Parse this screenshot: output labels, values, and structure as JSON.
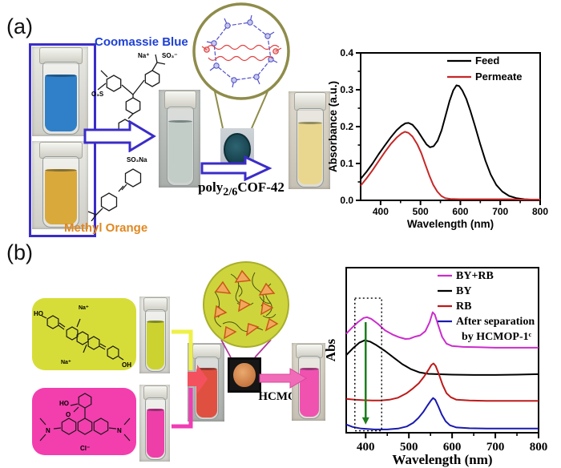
{
  "panels": {
    "a": {
      "label": "(a)",
      "dye1": "Coomassie Blue",
      "dye2": "Methyl Orange",
      "membrane_label": {
        "pre": "poly",
        "sub": "2/6",
        "post": "COF-42"
      },
      "structures": {
        "coomassie": {
          "na": "Na⁺",
          "so3": "SO₃⁻",
          "o3s": "O₃S"
        },
        "methyl_orange": {
          "so3na": "SO₃Na"
        }
      },
      "colors": {
        "box_border": "#3b2cc8",
        "arrow": "#3b2cc8",
        "dye1_text": "#1d3fd6",
        "dye2_text": "#e08820",
        "ring": "#8e8c4a",
        "net_blue": "#5050c8",
        "net_red": "#e04040",
        "vial_blue": "#2f80c8",
        "vial_amber": "#d9a93c",
        "vial_mix": "#c3cdc8",
        "vial_permeate": "#ead78f",
        "membrane": "#1d4a55"
      }
    },
    "b": {
      "label": "(b)",
      "process_label": "HCMOPs",
      "structures": {
        "by": {
          "ho": "HO",
          "na_top": "Na⁺",
          "na_bottom": "Na⁺",
          "oh": "OH"
        },
        "rb": {
          "ho": "HO",
          "o": "O",
          "cl": "Cl⁻",
          "n_left": "N",
          "n_right": "N"
        }
      },
      "colors": {
        "box_yellow": "#d7dd38",
        "box_magenta": "#f33eae",
        "connector_yellow": "#eef048",
        "connector_magenta": "#f03cb4",
        "merge_arrow": "#f4515f",
        "process_arrow": "#f06cb8",
        "circle_fill": "#ced53c",
        "triangle_fill": "#f2a85c",
        "triangle_stroke": "#c85818",
        "vial_by": "#ccd22f",
        "vial_rb": "#ee3fa8",
        "vial_mix": "#e05040",
        "vial_after": "#f052b0"
      }
    }
  },
  "chart_data": [
    {
      "type": "line",
      "title": "",
      "xlabel": "Wavelength (nm)",
      "ylabel": "Absorbance (a.u.)",
      "xlim": [
        350,
        800
      ],
      "ylim": [
        0,
        0.4
      ],
      "xticks": [
        400,
        500,
        600,
        700,
        800
      ],
      "xticklabels": [
        "400",
        "500",
        "600",
        "700",
        "800"
      ],
      "xminor": [
        450,
        550,
        650,
        750
      ],
      "yticks": [
        0.0,
        0.1,
        0.2,
        0.3,
        0.4
      ],
      "yticklabels": [
        "0.0",
        "0.1",
        "0.2",
        "0.3",
        "0.4"
      ],
      "yminor": [
        0.05,
        0.15,
        0.25,
        0.35
      ],
      "grid": false,
      "legend_position": "top-right",
      "series": [
        {
          "name": "Feed",
          "color": "#000000",
          "points": [
            [
              350,
              0.058
            ],
            [
              365,
              0.078
            ],
            [
              380,
              0.1
            ],
            [
              395,
              0.125
            ],
            [
              410,
              0.148
            ],
            [
              425,
              0.17
            ],
            [
              440,
              0.19
            ],
            [
              452,
              0.202
            ],
            [
              462,
              0.209
            ],
            [
              470,
              0.21
            ],
            [
              480,
              0.205
            ],
            [
              492,
              0.19
            ],
            [
              505,
              0.168
            ],
            [
              515,
              0.152
            ],
            [
              524,
              0.144
            ],
            [
              533,
              0.147
            ],
            [
              543,
              0.162
            ],
            [
              553,
              0.19
            ],
            [
              563,
              0.23
            ],
            [
              573,
              0.27
            ],
            [
              582,
              0.298
            ],
            [
              590,
              0.312
            ],
            [
              597,
              0.31
            ],
            [
              605,
              0.298
            ],
            [
              615,
              0.275
            ],
            [
              625,
              0.243
            ],
            [
              637,
              0.2
            ],
            [
              650,
              0.152
            ],
            [
              663,
              0.107
            ],
            [
              676,
              0.07
            ],
            [
              690,
              0.042
            ],
            [
              705,
              0.024
            ],
            [
              722,
              0.012
            ],
            [
              740,
              0.006
            ],
            [
              760,
              0.003
            ],
            [
              780,
              0.002
            ],
            [
              800,
              0.002
            ]
          ]
        },
        {
          "name": "Permeate",
          "color": "#c62828",
          "points": [
            [
              350,
              0.04
            ],
            [
              365,
              0.06
            ],
            [
              380,
              0.082
            ],
            [
              395,
              0.106
            ],
            [
              410,
              0.13
            ],
            [
              425,
              0.152
            ],
            [
              440,
              0.17
            ],
            [
              452,
              0.181
            ],
            [
              461,
              0.186
            ],
            [
              470,
              0.183
            ],
            [
              480,
              0.173
            ],
            [
              492,
              0.152
            ],
            [
              502,
              0.128
            ],
            [
              512,
              0.098
            ],
            [
              522,
              0.068
            ],
            [
              532,
              0.042
            ],
            [
              542,
              0.024
            ],
            [
              552,
              0.012
            ],
            [
              562,
              0.006
            ],
            [
              575,
              0.004
            ],
            [
              600,
              0.003
            ],
            [
              640,
              0.003
            ],
            [
              680,
              0.003
            ],
            [
              720,
              0.003
            ],
            [
              760,
              0.002
            ],
            [
              800,
              0.002
            ]
          ]
        }
      ]
    },
    {
      "type": "line",
      "title": "",
      "xlabel": "Wavelength (nm)",
      "ylabel": "Abs",
      "xlim": [
        355,
        800
      ],
      "ylim": [
        0,
        10
      ],
      "xticks": [
        400,
        500,
        600,
        700,
        800
      ],
      "xticklabels": [
        "400",
        "500",
        "600",
        "700",
        "800"
      ],
      "xminor": [
        450,
        550,
        650,
        750
      ],
      "yticks": [],
      "yticklabels": [],
      "grid": false,
      "legend_position": "top-right",
      "series": [
        {
          "name": "BY+RB",
          "color": "#cb2dcb",
          "points": [
            [
              355,
              6.0
            ],
            [
              368,
              6.35
            ],
            [
              382,
              6.7
            ],
            [
              395,
              6.95
            ],
            [
              403,
              7.0
            ],
            [
              413,
              6.9
            ],
            [
              428,
              6.6
            ],
            [
              445,
              6.2
            ],
            [
              462,
              5.95
            ],
            [
              478,
              5.78
            ],
            [
              492,
              5.68
            ],
            [
              502,
              5.7
            ],
            [
              514,
              5.82
            ],
            [
              526,
              5.9
            ],
            [
              538,
              6.15
            ],
            [
              548,
              6.7
            ],
            [
              555,
              7.3
            ],
            [
              560,
              7.15
            ],
            [
              568,
              6.5
            ],
            [
              577,
              5.8
            ],
            [
              587,
              5.4
            ],
            [
              600,
              5.25
            ],
            [
              625,
              5.2
            ],
            [
              660,
              5.18
            ],
            [
              700,
              5.15
            ],
            [
              750,
              5.15
            ],
            [
              800,
              5.15
            ]
          ]
        },
        {
          "name": "BY",
          "color": "#000000",
          "points": [
            [
              355,
              4.7
            ],
            [
              370,
              5.1
            ],
            [
              385,
              5.45
            ],
            [
              398,
              5.6
            ],
            [
              410,
              5.52
            ],
            [
              425,
              5.3
            ],
            [
              445,
              4.95
            ],
            [
              465,
              4.55
            ],
            [
              485,
              4.15
            ],
            [
              505,
              3.85
            ],
            [
              525,
              3.65
            ],
            [
              545,
              3.57
            ],
            [
              565,
              3.55
            ],
            [
              600,
              3.52
            ],
            [
              650,
              3.5
            ],
            [
              700,
              3.5
            ],
            [
              750,
              3.52
            ],
            [
              800,
              3.55
            ]
          ]
        },
        {
          "name": "RB",
          "color": "#bd1a1a",
          "points": [
            [
              355,
              2.05
            ],
            [
              375,
              2.0
            ],
            [
              395,
              1.97
            ],
            [
              415,
              1.95
            ],
            [
              435,
              1.95
            ],
            [
              455,
              2.0
            ],
            [
              475,
              2.12
            ],
            [
              495,
              2.4
            ],
            [
              510,
              2.7
            ],
            [
              523,
              3.0
            ],
            [
              535,
              3.4
            ],
            [
              545,
              3.8
            ],
            [
              552,
              4.1
            ],
            [
              557,
              4.2
            ],
            [
              562,
              4.05
            ],
            [
              570,
              3.5
            ],
            [
              578,
              2.9
            ],
            [
              587,
              2.4
            ],
            [
              597,
              2.15
            ],
            [
              610,
              2.0
            ],
            [
              640,
              1.95
            ],
            [
              680,
              1.93
            ],
            [
              720,
              1.93
            ],
            [
              760,
              1.93
            ],
            [
              800,
              1.93
            ]
          ]
        },
        {
          "name": "After separation",
          "name2": "by HCMOP-1ᶜ",
          "color": "#1a1aae",
          "points": [
            [
              355,
              0.5
            ],
            [
              370,
              0.35
            ],
            [
              390,
              0.25
            ],
            [
              420,
              0.2
            ],
            [
              450,
              0.2
            ],
            [
              475,
              0.25
            ],
            [
              495,
              0.38
            ],
            [
              510,
              0.6
            ],
            [
              522,
              0.9
            ],
            [
              533,
              1.25
            ],
            [
              543,
              1.65
            ],
            [
              551,
              1.95
            ],
            [
              556,
              2.1
            ],
            [
              561,
              2.0
            ],
            [
              568,
              1.6
            ],
            [
              576,
              1.1
            ],
            [
              585,
              0.7
            ],
            [
              595,
              0.45
            ],
            [
              610,
              0.32
            ],
            [
              640,
              0.27
            ],
            [
              680,
              0.25
            ],
            [
              720,
              0.25
            ],
            [
              760,
              0.25
            ],
            [
              800,
              0.25
            ]
          ]
        }
      ],
      "annotations": {
        "dashed_box": {
          "x0": 375,
          "x1": 437,
          "y0": 0.12,
          "y1": 8.15
        },
        "arrow": {
          "x": 400,
          "y_from": 6.7,
          "y_to": 0.5,
          "color": "#1e7d1e"
        }
      }
    }
  ]
}
